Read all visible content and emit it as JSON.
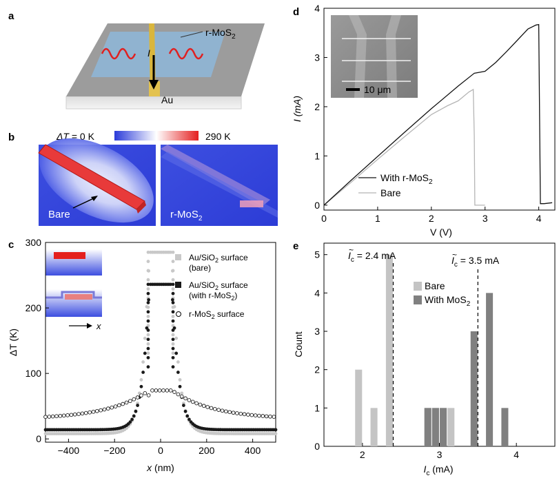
{
  "panel_labels": {
    "a": "a",
    "b": "b",
    "c": "c",
    "d": "d",
    "e": "e"
  },
  "panel_a": {
    "material_label": "r-MoS",
    "material_sub": "2",
    "current_label": "I",
    "electrode_label": "Au"
  },
  "panel_b": {
    "scale_left_prefix": "ΔT",
    "scale_left_value": " = 0 K",
    "scale_right": "290 K",
    "bare_label": "Bare",
    "rmos_label": "r-MoS",
    "rmos_sub": "2",
    "colors": {
      "cold": "#2a3ad9",
      "mid": "#ffffff",
      "hot": "#e41f1f"
    }
  },
  "chart_data": [
    {
      "panel": "c",
      "type": "scatter",
      "xlabel": "x (nm)",
      "ylabel": "ΔT (K)",
      "xlim": [
        -500,
        500
      ],
      "ylim": [
        -5,
        300
      ],
      "xticks": [
        -400,
        -200,
        0,
        200,
        400
      ],
      "yticks": [
        0,
        100,
        200,
        300
      ],
      "x_tick_labels": [
        "−400",
        "−200",
        "0",
        "200",
        "400"
      ],
      "y_tick_labels": [
        "0",
        "100",
        "200",
        "300"
      ],
      "series": [
        {
          "name": "Au/SiO2 surface (bare)",
          "legend_lines": [
            "Au/SiO",
            "2",
            " surface",
            "(bare)"
          ],
          "marker": "filled-light",
          "color": "#c8c8c8",
          "plateau": 285,
          "half_width": 50,
          "base": 8
        },
        {
          "name": "Au/SiO2 surface (with r-MoS2)",
          "legend_lines": [
            "Au/SiO",
            "2",
            " surface",
            "(with r-MoS",
            "2",
            ")"
          ],
          "marker": "filled-dark",
          "color": "#1a1a1a",
          "plateau": 236,
          "half_width": 50,
          "base": 14
        },
        {
          "name": "r-MoS2 surface",
          "legend_lines": [
            "r-MoS",
            "2",
            " surface"
          ],
          "marker": "open",
          "color": "#1a1a1a",
          "plateau": 74,
          "half_width": 50,
          "base": 30
        }
      ],
      "inset_axis_label": "x"
    },
    {
      "panel": "d",
      "type": "line",
      "xlabel": "V (V)",
      "ylabel": "I (mA)",
      "xlim": [
        0,
        4.3
      ],
      "ylim": [
        -0.1,
        4
      ],
      "xticks": [
        0,
        1,
        2,
        3,
        4
      ],
      "yticks": [
        0,
        1,
        2,
        3,
        4
      ],
      "x_tick_labels": [
        "0",
        "1",
        "2",
        "3",
        "4"
      ],
      "y_tick_labels": [
        "0",
        "1",
        "2",
        "3",
        "4"
      ],
      "series": [
        {
          "name": "With r-MoS2",
          "legend": "With r-MoS",
          "legend_sub": "2",
          "color": "#111111",
          "x": [
            0,
            0.5,
            1,
            1.5,
            2,
            2.5,
            2.8,
            3,
            3.2,
            3.4,
            3.6,
            3.8,
            3.95,
            4.0,
            4.03,
            4.1,
            4.25
          ],
          "y": [
            0,
            0.5,
            0.99,
            1.48,
            1.96,
            2.42,
            2.68,
            2.72,
            2.9,
            3.12,
            3.35,
            3.58,
            3.66,
            3.67,
            0.03,
            0.03,
            0.05
          ]
        },
        {
          "name": "Bare",
          "legend": "Bare",
          "color": "#b5b5b5",
          "x": [
            0,
            0.5,
            1,
            1.5,
            2,
            2.3,
            2.5,
            2.7,
            2.78,
            2.8,
            2.81,
            2.83,
            3.0
          ],
          "y": [
            0,
            0.46,
            0.93,
            1.39,
            1.84,
            2.02,
            2.12,
            2.3,
            2.35,
            1.4,
            0.0,
            0.0,
            0.0
          ]
        }
      ],
      "inset_scale_label": "10 μm"
    },
    {
      "panel": "e",
      "type": "bar",
      "xlabel": "I",
      "xlabel_sub": "c",
      "xlabel_unit": " (mA)",
      "ylabel": "Count",
      "xlim": [
        1.5,
        4.5
      ],
      "ylim": [
        0,
        5.3
      ],
      "xticks": [
        2,
        3,
        4
      ],
      "yticks": [
        0,
        1,
        2,
        3,
        4,
        5
      ],
      "x_tick_labels": [
        "2",
        "3",
        "4"
      ],
      "y_tick_labels": [
        "0",
        "1",
        "2",
        "3",
        "4",
        "5"
      ],
      "bin_width": 0.1,
      "series": [
        {
          "name": "Bare",
          "color": "#c4c4c4",
          "x": [
            1.95,
            2.15,
            2.35,
            2.85,
            2.95,
            3.05,
            3.15
          ],
          "y": [
            2,
            1,
            5,
            1,
            1,
            1,
            1
          ]
        },
        {
          "name": "With MoS2",
          "color": "#808080",
          "x": [
            2.85,
            2.95,
            3.05,
            3.45,
            3.65,
            3.85
          ],
          "y": [
            1,
            1,
            1,
            3,
            4,
            1
          ]
        }
      ],
      "legend": [
        {
          "label": "Bare"
        },
        {
          "label": "With MoS",
          "sub": "2"
        }
      ],
      "annotations": [
        {
          "x": 2.4,
          "prefix": "I",
          "sub": "c",
          "text": " = 2.4 mA"
        },
        {
          "x": 3.5,
          "prefix": "I",
          "sub": "c",
          "text": " = 3.5 mA"
        }
      ]
    }
  ]
}
